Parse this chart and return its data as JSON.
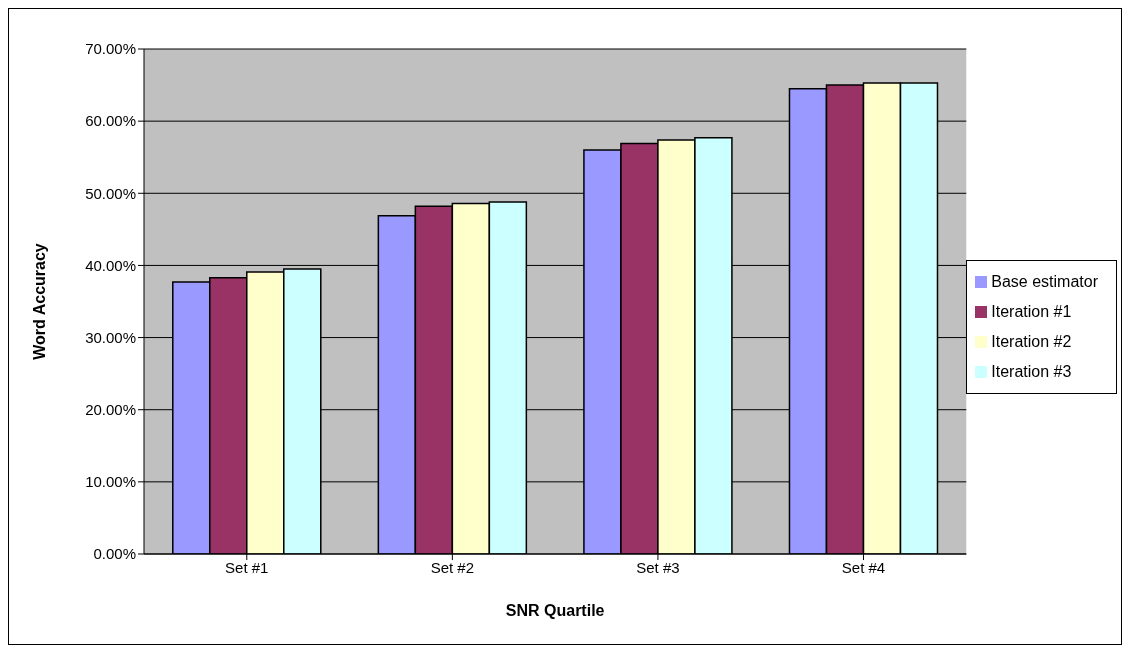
{
  "chart_data": {
    "type": "bar",
    "xlabel": "SNR Quartile",
    "ylabel": "Word Accuracy",
    "categories": [
      "Set #1",
      "Set #2",
      "Set #3",
      "Set #4"
    ],
    "series": [
      {
        "name": "Base estimator",
        "color": "#9999ff",
        "values": [
          37.7,
          46.9,
          56.0,
          64.5
        ]
      },
      {
        "name": "Iteration #1",
        "color": "#993366",
        "values": [
          38.3,
          48.2,
          56.9,
          65.0
        ]
      },
      {
        "name": "Iteration #2",
        "color": "#ffffcc",
        "values": [
          39.1,
          48.6,
          57.4,
          65.3
        ]
      },
      {
        "name": "Iteration #3",
        "color": "#ccffff",
        "values": [
          39.5,
          48.8,
          57.7,
          65.3
        ]
      }
    ],
    "ylim": [
      0,
      70
    ],
    "yticks": [
      {
        "value": 0,
        "label": "0.00%"
      },
      {
        "value": 10,
        "label": "10.00%"
      },
      {
        "value": 20,
        "label": "20.00%"
      },
      {
        "value": 30,
        "label": "30.00%"
      },
      {
        "value": 40,
        "label": "40.00%"
      },
      {
        "value": 50,
        "label": "50.00%"
      },
      {
        "value": 60,
        "label": "60.00%"
      },
      {
        "value": 70,
        "label": "70.00%"
      }
    ],
    "grid": "y",
    "legend": "right"
  }
}
